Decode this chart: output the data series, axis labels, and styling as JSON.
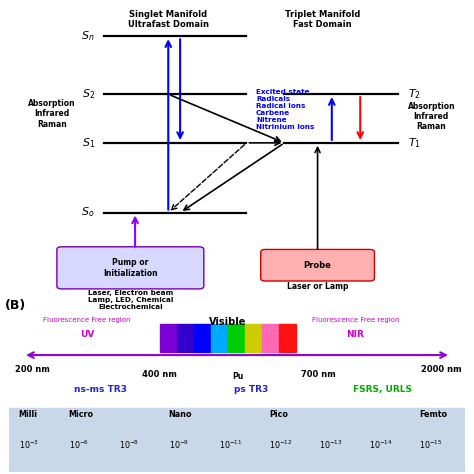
{
  "bg_color": "#ffffff",
  "panel_A": {
    "singlet_label": "Singlet Manifold\nUltrafast Domain",
    "triplet_label": "Triplet Manifold\nFast Domain",
    "absorption_left": "Absorption\nInfrared\nRaman",
    "absorption_right": "Absorption\nInfrared\nRaman",
    "excited_states": "Excited state\nRadicals\nRadical Ions\nCarbene\nNitrene\nNitrinium Ions",
    "pump_label": "Pump or\nInitialization",
    "probe_label": "Probe",
    "laser_label": "Laser, Electron beam\nLamp, LED, Chemical\nElectrochemical",
    "laser_or_lamp": "Laser or Lamp",
    "B_label": "(B)"
  },
  "panel_B": {
    "arrow_color": "#9400D3",
    "vis_colors": [
      "#7B00D4",
      "#3300CC",
      "#0000FF",
      "#00AAFF",
      "#00CC00",
      "#CCCC00",
      "#FF69B4",
      "#FF1111"
    ],
    "vis_label": "Visible",
    "uv_label": "UV",
    "nir_label": "NIR",
    "ffr_label": "Fluorescence Free region",
    "nm200": "200 nm",
    "nm400": "400 nm",
    "nm700": "700 nm",
    "nm2000": "2000 nm",
    "pu_label": "Pu"
  },
  "panel_C": {
    "ns_ms_label": "ns-ms TR3",
    "ps_label": "ps TR3",
    "fsrs_label": "FSRS, URLS",
    "ns_ms_color": "#2222CC",
    "ps_color": "#2222CC",
    "fsrs_color": "#00AA00",
    "table_bg": "#C8D8E8",
    "row1": [
      "Milli",
      "Micro",
      "",
      "Nano",
      "",
      "Pico",
      "",
      "",
      "Femto"
    ],
    "row2": [
      "$10^{-3}$",
      "$10^{-6}$",
      "$10^{-8}$",
      "$10^{-9}$",
      "$10^{-11}$",
      "$10^{-12}$",
      "$10^{-13}$",
      "$10^{-14}$",
      "$10^{-15}$"
    ]
  }
}
